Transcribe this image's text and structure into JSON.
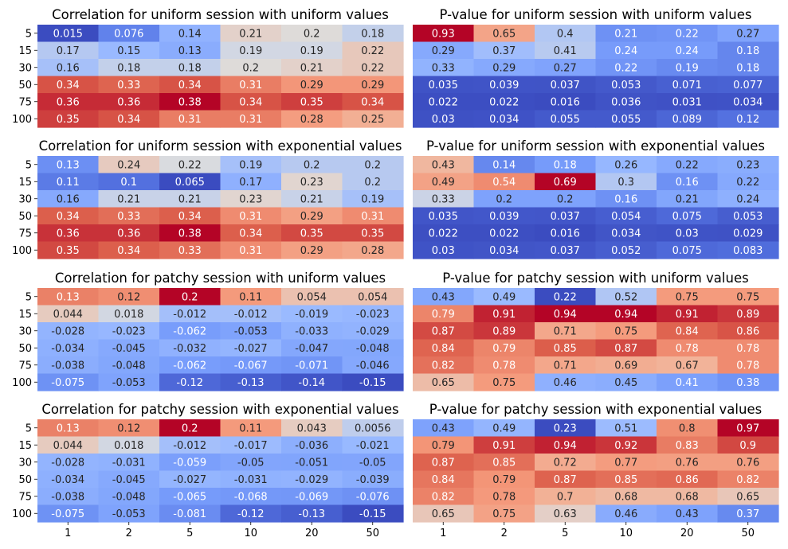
{
  "chart_data": [
    {
      "type": "heatmap",
      "title": "Correlation for uniform session with uniform values",
      "row_labels": [
        "5",
        "15",
        "30",
        "50",
        "75",
        "100"
      ],
      "col_labels": [
        "1",
        "2",
        "5",
        "10",
        "20",
        "50"
      ],
      "values": [
        [
          "0.015",
          "0.076",
          "0.14",
          "0.21",
          "0.2",
          "0.18"
        ],
        [
          "0.17",
          "0.15",
          "0.13",
          "0.19",
          "0.19",
          "0.22"
        ],
        [
          "0.16",
          "0.18",
          "0.18",
          "0.2",
          "0.21",
          "0.22"
        ],
        [
          "0.34",
          "0.33",
          "0.34",
          "0.31",
          "0.29",
          "0.29"
        ],
        [
          "0.36",
          "0.36",
          "0.38",
          "0.34",
          "0.35",
          "0.34"
        ],
        [
          "0.35",
          "0.34",
          "0.31",
          "0.31",
          "0.28",
          "0.25"
        ]
      ],
      "colormap": "coolwarm",
      "show_xticks": false
    },
    {
      "type": "heatmap",
      "title": "P-value for uniform session with uniform values",
      "row_labels": [],
      "col_labels": [
        "1",
        "2",
        "5",
        "10",
        "20",
        "50"
      ],
      "values": [
        [
          "0.93",
          "0.65",
          "0.4",
          "0.21",
          "0.22",
          "0.27"
        ],
        [
          "0.29",
          "0.37",
          "0.41",
          "0.24",
          "0.24",
          "0.18"
        ],
        [
          "0.33",
          "0.29",
          "0.27",
          "0.22",
          "0.19",
          "0.18"
        ],
        [
          "0.035",
          "0.039",
          "0.037",
          "0.053",
          "0.071",
          "0.077"
        ],
        [
          "0.022",
          "0.022",
          "0.016",
          "0.036",
          "0.031",
          "0.034"
        ],
        [
          "0.03",
          "0.034",
          "0.055",
          "0.055",
          "0.089",
          "0.12"
        ]
      ],
      "colormap": "coolwarm",
      "show_xticks": false
    },
    {
      "type": "heatmap",
      "title": "Correlation for uniform session with exponential values",
      "row_labels": [
        "5",
        "15",
        "30",
        "50",
        "75",
        "100"
      ],
      "col_labels": [
        "1",
        "2",
        "5",
        "10",
        "20",
        "50"
      ],
      "values": [
        [
          "0.13",
          "0.24",
          "0.22",
          "0.19",
          "0.2",
          "0.2"
        ],
        [
          "0.11",
          "0.1",
          "0.065",
          "0.17",
          "0.23",
          "0.2"
        ],
        [
          "0.16",
          "0.21",
          "0.21",
          "0.23",
          "0.21",
          "0.19"
        ],
        [
          "0.34",
          "0.33",
          "0.34",
          "0.31",
          "0.29",
          "0.31"
        ],
        [
          "0.36",
          "0.36",
          "0.38",
          "0.34",
          "0.35",
          "0.35"
        ],
        [
          "0.35",
          "0.34",
          "0.33",
          "0.31",
          "0.29",
          "0.28"
        ]
      ],
      "colormap": "coolwarm",
      "show_xticks": false
    },
    {
      "type": "heatmap",
      "title": "P-value for uniform session with exponential values",
      "row_labels": [],
      "col_labels": [
        "1",
        "2",
        "5",
        "10",
        "20",
        "50"
      ],
      "values": [
        [
          "0.43",
          "0.14",
          "0.18",
          "0.26",
          "0.22",
          "0.23"
        ],
        [
          "0.49",
          "0.54",
          "0.69",
          "0.3",
          "0.16",
          "0.22"
        ],
        [
          "0.33",
          "0.2",
          "0.2",
          "0.16",
          "0.21",
          "0.24"
        ],
        [
          "0.035",
          "0.039",
          "0.037",
          "0.054",
          "0.075",
          "0.053"
        ],
        [
          "0.022",
          "0.022",
          "0.016",
          "0.034",
          "0.03",
          "0.029"
        ],
        [
          "0.03",
          "0.034",
          "0.037",
          "0.052",
          "0.075",
          "0.083"
        ]
      ],
      "colormap": "coolwarm",
      "show_xticks": false
    },
    {
      "type": "heatmap",
      "title": "Correlation for patchy session with uniform values",
      "row_labels": [
        "5",
        "15",
        "30",
        "50",
        "75",
        "100"
      ],
      "col_labels": [
        "1",
        "2",
        "5",
        "10",
        "20",
        "50"
      ],
      "values": [
        [
          "0.13",
          "0.12",
          "0.2",
          "0.11",
          "0.054",
          "0.054"
        ],
        [
          "0.044",
          "0.018",
          "-0.012",
          "-0.012",
          "-0.019",
          "-0.023"
        ],
        [
          "-0.028",
          "-0.023",
          "-0.062",
          "-0.053",
          "-0.033",
          "-0.029"
        ],
        [
          "-0.034",
          "-0.045",
          "-0.032",
          "-0.027",
          "-0.047",
          "-0.048"
        ],
        [
          "-0.038",
          "-0.048",
          "-0.062",
          "-0.067",
          "-0.071",
          "-0.046"
        ],
        [
          "-0.075",
          "-0.053",
          "-0.12",
          "-0.13",
          "-0.14",
          "-0.15"
        ]
      ],
      "colormap": "coolwarm",
      "show_xticks": false
    },
    {
      "type": "heatmap",
      "title": "P-value for patchy session with uniform values",
      "row_labels": [],
      "col_labels": [
        "1",
        "2",
        "5",
        "10",
        "20",
        "50"
      ],
      "values": [
        [
          "0.43",
          "0.49",
          "0.22",
          "0.52",
          "0.75",
          "0.75"
        ],
        [
          "0.79",
          "0.91",
          "0.94",
          "0.94",
          "0.91",
          "0.89"
        ],
        [
          "0.87",
          "0.89",
          "0.71",
          "0.75",
          "0.84",
          "0.86"
        ],
        [
          "0.84",
          "0.79",
          "0.85",
          "0.87",
          "0.78",
          "0.78"
        ],
        [
          "0.82",
          "0.78",
          "0.71",
          "0.69",
          "0.67",
          "0.78"
        ],
        [
          "0.65",
          "0.75",
          "0.46",
          "0.45",
          "0.41",
          "0.38"
        ]
      ],
      "colormap": "coolwarm",
      "show_xticks": false
    },
    {
      "type": "heatmap",
      "title": "Correlation for patchy session with exponential values",
      "row_labels": [
        "5",
        "15",
        "30",
        "50",
        "75",
        "100"
      ],
      "col_labels": [
        "1",
        "2",
        "5",
        "10",
        "20",
        "50"
      ],
      "values": [
        [
          "0.13",
          "0.12",
          "0.2",
          "0.11",
          "0.043",
          "0.0056"
        ],
        [
          "0.044",
          "0.018",
          "-0.012",
          "-0.017",
          "-0.036",
          "-0.021"
        ],
        [
          "-0.028",
          "-0.031",
          "-0.059",
          "-0.05",
          "-0.051",
          "-0.05"
        ],
        [
          "-0.034",
          "-0.045",
          "-0.027",
          "-0.031",
          "-0.029",
          "-0.039"
        ],
        [
          "-0.038",
          "-0.048",
          "-0.065",
          "-0.068",
          "-0.069",
          "-0.076"
        ],
        [
          "-0.075",
          "-0.053",
          "-0.081",
          "-0.12",
          "-0.13",
          "-0.15"
        ]
      ],
      "colormap": "coolwarm",
      "show_xticks": true
    },
    {
      "type": "heatmap",
      "title": "P-value for patchy session with exponential values",
      "row_labels": [],
      "col_labels": [
        "1",
        "2",
        "5",
        "10",
        "20",
        "50"
      ],
      "values": [
        [
          "0.43",
          "0.49",
          "0.23",
          "0.51",
          "0.8",
          "0.97"
        ],
        [
          "0.79",
          "0.91",
          "0.94",
          "0.92",
          "0.83",
          "0.9"
        ],
        [
          "0.87",
          "0.85",
          "0.72",
          "0.77",
          "0.76",
          "0.76"
        ],
        [
          "0.84",
          "0.79",
          "0.87",
          "0.85",
          "0.86",
          "0.82"
        ],
        [
          "0.82",
          "0.78",
          "0.7",
          "0.68",
          "0.68",
          "0.65"
        ],
        [
          "0.65",
          "0.75",
          "0.63",
          "0.46",
          "0.43",
          "0.37"
        ]
      ],
      "colormap": "coolwarm",
      "show_xticks": true
    }
  ]
}
